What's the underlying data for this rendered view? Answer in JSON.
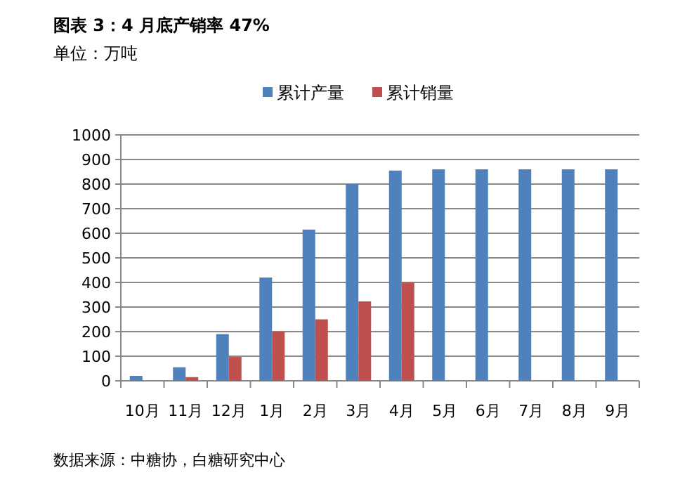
{
  "chart_data": {
    "type": "bar",
    "title": "图表 3：4 月底产销率 47%",
    "subtitle": "单位：万吨",
    "categories": [
      "10月",
      "11月",
      "12月",
      "1月",
      "2月",
      "3月",
      "4月",
      "5月",
      "6月",
      "7月",
      "8月",
      "9月"
    ],
    "series": [
      {
        "name": "累计产量",
        "color": "#4f81bd",
        "values": [
          20,
          55,
          190,
          420,
          615,
          800,
          855,
          860,
          860,
          860,
          860,
          860
        ]
      },
      {
        "name": "累计销量",
        "color": "#c0504d",
        "values": [
          null,
          15,
          97,
          200,
          250,
          323,
          400,
          null,
          null,
          null,
          null,
          null
        ]
      }
    ],
    "ylim": [
      0,
      1000
    ],
    "yticks": [
      0,
      100,
      200,
      300,
      400,
      500,
      600,
      700,
      800,
      900,
      1000
    ],
    "grid": "y",
    "legend": "top",
    "annotations": [
      "数据来源：中糖协，白糖研究中心"
    ]
  }
}
